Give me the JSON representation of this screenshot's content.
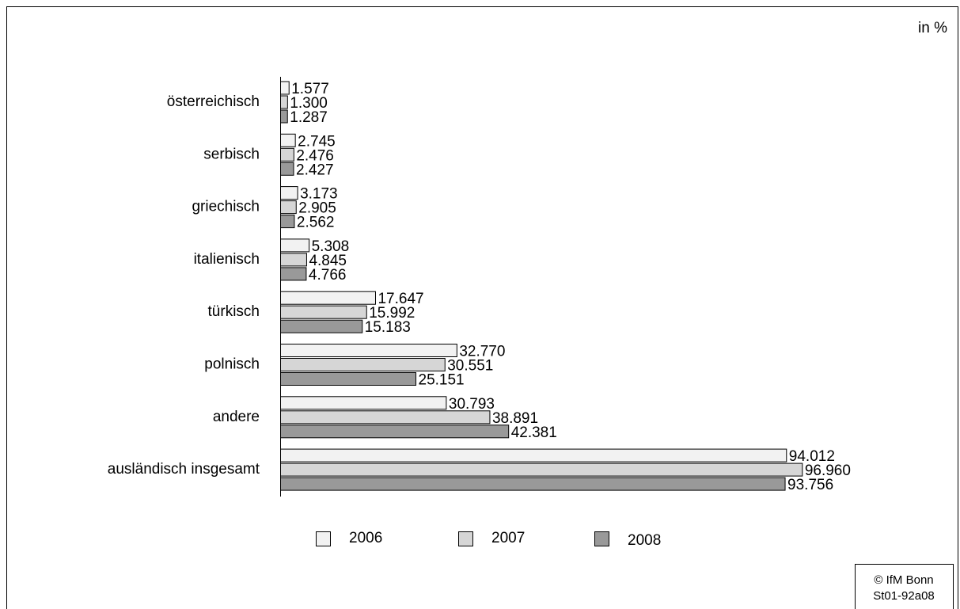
{
  "chart_data": {
    "type": "hbar",
    "unit_label": "in %",
    "categories": [
      "österreichisch",
      "serbisch",
      "griechisch",
      "italienisch",
      "türkisch",
      "polnisch",
      "andere",
      "ausländisch insgesamt"
    ],
    "series": [
      {
        "name": "2006",
        "color": "#f2f2f2",
        "values": [
          1.577,
          2.745,
          3.173,
          5.308,
          17.647,
          32.77,
          30.793,
          94.012
        ],
        "value_labels": [
          "1.577",
          "2.745",
          "3.173",
          "5.308",
          "17.647",
          "32.770",
          "30.793",
          "94.012"
        ]
      },
      {
        "name": "2007",
        "color": "#d6d6d6",
        "values": [
          1.3,
          2.476,
          2.905,
          4.845,
          15.992,
          30.551,
          38.891,
          96.96
        ],
        "value_labels": [
          "1.300",
          "2.476",
          "2.905",
          "4.845",
          "15.992",
          "30.551",
          "38.891",
          "96.960"
        ]
      },
      {
        "name": "2008",
        "color": "#999999",
        "values": [
          1.287,
          2.427,
          2.562,
          4.766,
          15.183,
          25.151,
          42.381,
          93.756
        ],
        "value_labels": [
          "1.287",
          "2.427",
          "2.562",
          "4.766",
          "15.183",
          "25.151",
          "42.381",
          "93.756"
        ]
      }
    ],
    "xlim": [
      0,
      100
    ],
    "notes": [
      "© IfM Bonn",
      "St01-92a08"
    ]
  }
}
